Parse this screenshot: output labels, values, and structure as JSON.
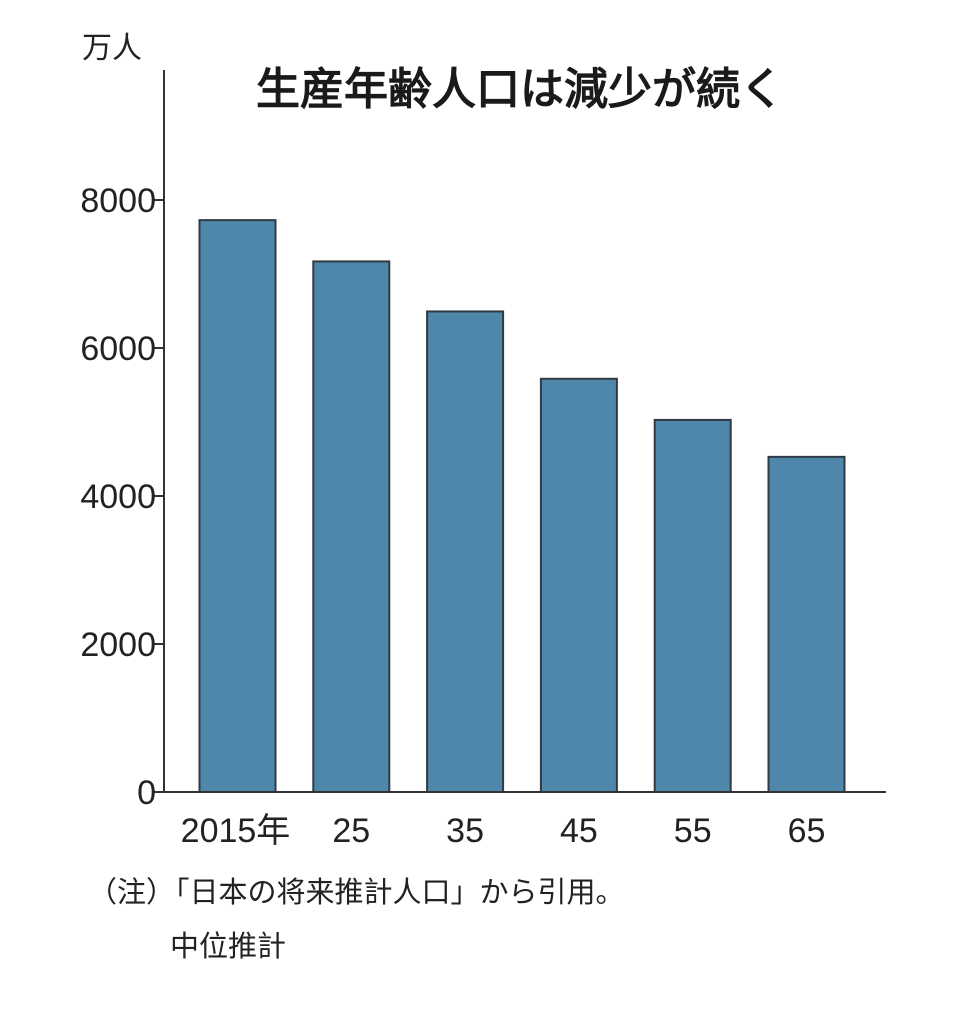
{
  "chart_data": {
    "type": "bar",
    "title": "生産年齢人口は減少が続く",
    "ylabel": "万人",
    "xlabel": "",
    "categories": [
      "2015年",
      "25",
      "35",
      "45",
      "55",
      "65"
    ],
    "values": [
      7728,
      7170,
      6494,
      5584,
      5028,
      4529
    ],
    "ylim": [
      0,
      8000
    ],
    "yticks": [
      "0",
      "2000",
      "4000",
      "6000",
      "8000"
    ],
    "ytick_values": [
      0,
      2000,
      4000,
      6000,
      8000
    ],
    "bar_color": "#4f87ab",
    "grid": false,
    "legend": "none"
  },
  "notes": {
    "line1": "（注）「日本の将来推計人口」から引用。",
    "line2": "中位推計"
  }
}
